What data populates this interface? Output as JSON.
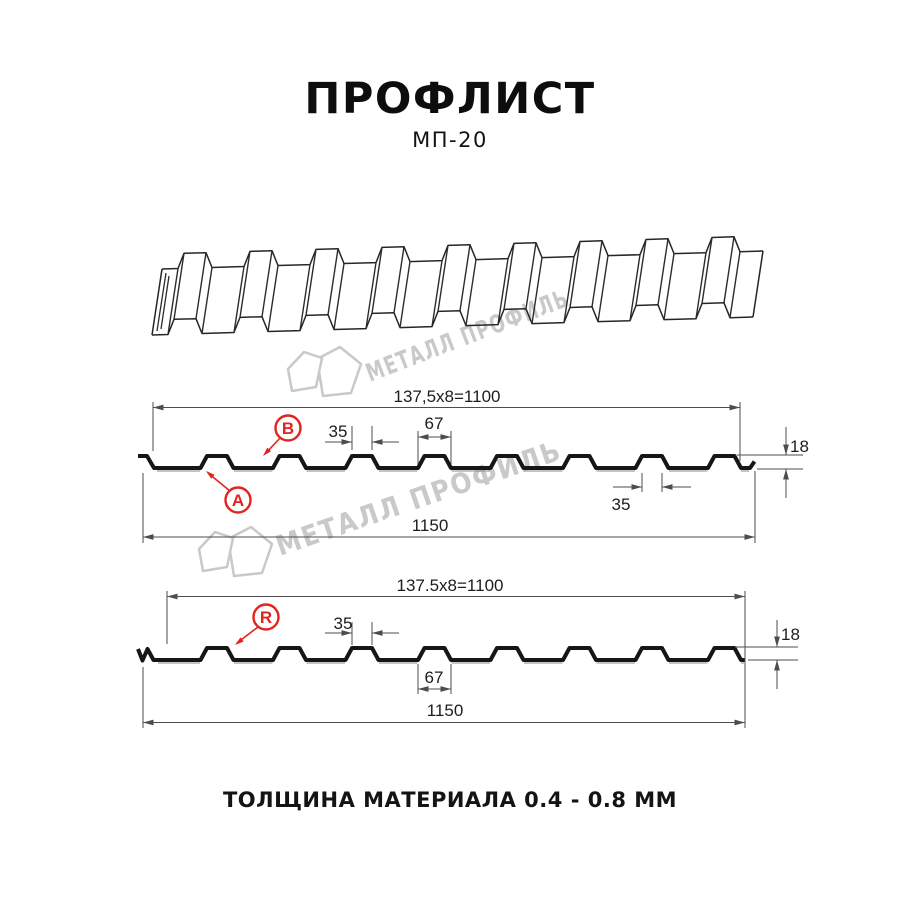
{
  "header": {
    "title": "ПРОФЛИСТ",
    "subtitle": "МП-20"
  },
  "footer": {
    "text": "ТОЛЩИНА МАТЕРИАЛА 0.4 - 0.8 ММ"
  },
  "watermark": {
    "text": "МЕТАЛЛ ПРОФИЛЬ",
    "color": "#c9c9c9"
  },
  "colors": {
    "accent_red": "#e3231d",
    "ink": "#161616",
    "dim_lines": "#4d4d4d"
  },
  "diagram": {
    "type": "technical-profile-drawing",
    "product": "МП-20",
    "section_a": {
      "covering_width_label": "137,5x8=1100",
      "overall_width_label": "1150",
      "rib_top_width_label": "35",
      "rib_bottom_width_label": "67",
      "rib_base_width_label": "35",
      "height_label": "18",
      "point_labels": [
        "A",
        "B"
      ]
    },
    "section_r": {
      "covering_width_label": "137.5x8=1100",
      "overall_width_label": "1150",
      "rib_top_width_label": "35",
      "rib_bottom_width_label": "67",
      "height_label": "18",
      "point_labels": [
        "R"
      ]
    }
  }
}
